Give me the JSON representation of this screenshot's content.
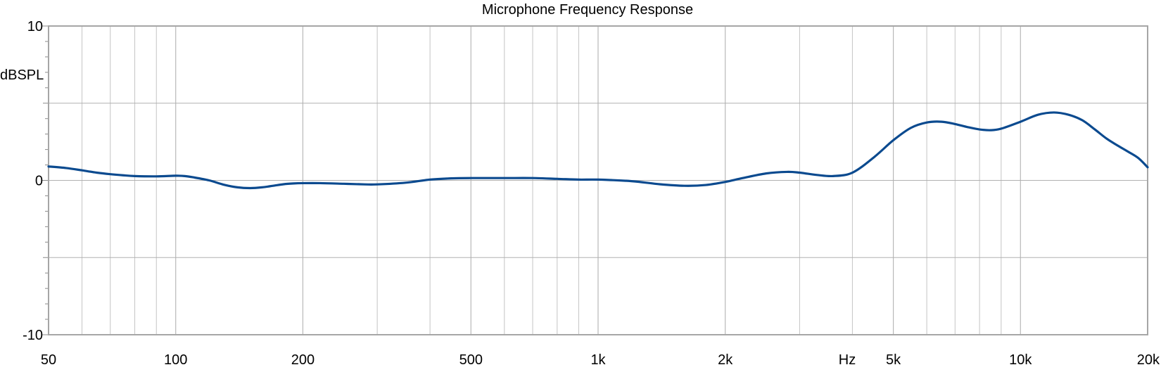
{
  "chart_data": {
    "type": "line",
    "title": "Microphone Frequency Response",
    "xlabel": "Hz",
    "ylabel": "dBSPL",
    "x_scale": "log",
    "xlim": [
      50,
      20000
    ],
    "ylim": [
      -10,
      10
    ],
    "x_major_ticks": [
      50,
      100,
      200,
      500,
      1000,
      2000,
      5000,
      10000,
      20000
    ],
    "x_tick_labels": [
      "50",
      "100",
      "200",
      "500",
      "1k",
      "2k",
      "5k",
      "10k",
      "20k"
    ],
    "x_minor_grid": [
      60,
      70,
      80,
      90,
      300,
      400,
      600,
      700,
      800,
      900,
      3000,
      4000,
      6000,
      7000,
      8000,
      9000
    ],
    "y_major_ticks": [
      10,
      0,
      -10
    ],
    "y_tick_labels": [
      "10",
      "0",
      "-10"
    ],
    "y_grid": [
      5,
      -5
    ],
    "grid": true,
    "series": [
      {
        "color": "#0b4a8f",
        "points": [
          [
            50,
            0.9
          ],
          [
            55,
            0.8
          ],
          [
            60,
            0.65
          ],
          [
            65,
            0.5
          ],
          [
            70,
            0.4
          ],
          [
            75,
            0.33
          ],
          [
            80,
            0.28
          ],
          [
            90,
            0.26
          ],
          [
            100,
            0.3
          ],
          [
            105,
            0.28
          ],
          [
            110,
            0.2
          ],
          [
            120,
            0.0
          ],
          [
            130,
            -0.28
          ],
          [
            140,
            -0.45
          ],
          [
            150,
            -0.5
          ],
          [
            160,
            -0.45
          ],
          [
            170,
            -0.35
          ],
          [
            180,
            -0.25
          ],
          [
            190,
            -0.2
          ],
          [
            200,
            -0.18
          ],
          [
            220,
            -0.18
          ],
          [
            250,
            -0.22
          ],
          [
            280,
            -0.26
          ],
          [
            300,
            -0.26
          ],
          [
            350,
            -0.15
          ],
          [
            400,
            0.05
          ],
          [
            450,
            0.13
          ],
          [
            500,
            0.15
          ],
          [
            600,
            0.15
          ],
          [
            700,
            0.15
          ],
          [
            800,
            0.1
          ],
          [
            900,
            0.05
          ],
          [
            1000,
            0.05
          ],
          [
            1200,
            -0.05
          ],
          [
            1400,
            -0.25
          ],
          [
            1600,
            -0.35
          ],
          [
            1800,
            -0.3
          ],
          [
            2000,
            -0.1
          ],
          [
            2200,
            0.15
          ],
          [
            2500,
            0.45
          ],
          [
            2800,
            0.55
          ],
          [
            3000,
            0.5
          ],
          [
            3300,
            0.35
          ],
          [
            3600,
            0.28
          ],
          [
            4000,
            0.5
          ],
          [
            4500,
            1.5
          ],
          [
            5000,
            2.6
          ],
          [
            5500,
            3.4
          ],
          [
            6000,
            3.75
          ],
          [
            6500,
            3.8
          ],
          [
            7000,
            3.65
          ],
          [
            7500,
            3.45
          ],
          [
            8000,
            3.3
          ],
          [
            8500,
            3.25
          ],
          [
            9000,
            3.35
          ],
          [
            10000,
            3.8
          ],
          [
            11000,
            4.25
          ],
          [
            12000,
            4.4
          ],
          [
            13000,
            4.25
          ],
          [
            14000,
            3.9
          ],
          [
            15000,
            3.3
          ],
          [
            16000,
            2.7
          ],
          [
            17000,
            2.25
          ],
          [
            18000,
            1.85
          ],
          [
            19000,
            1.45
          ],
          [
            20000,
            0.85
          ]
        ]
      }
    ]
  }
}
